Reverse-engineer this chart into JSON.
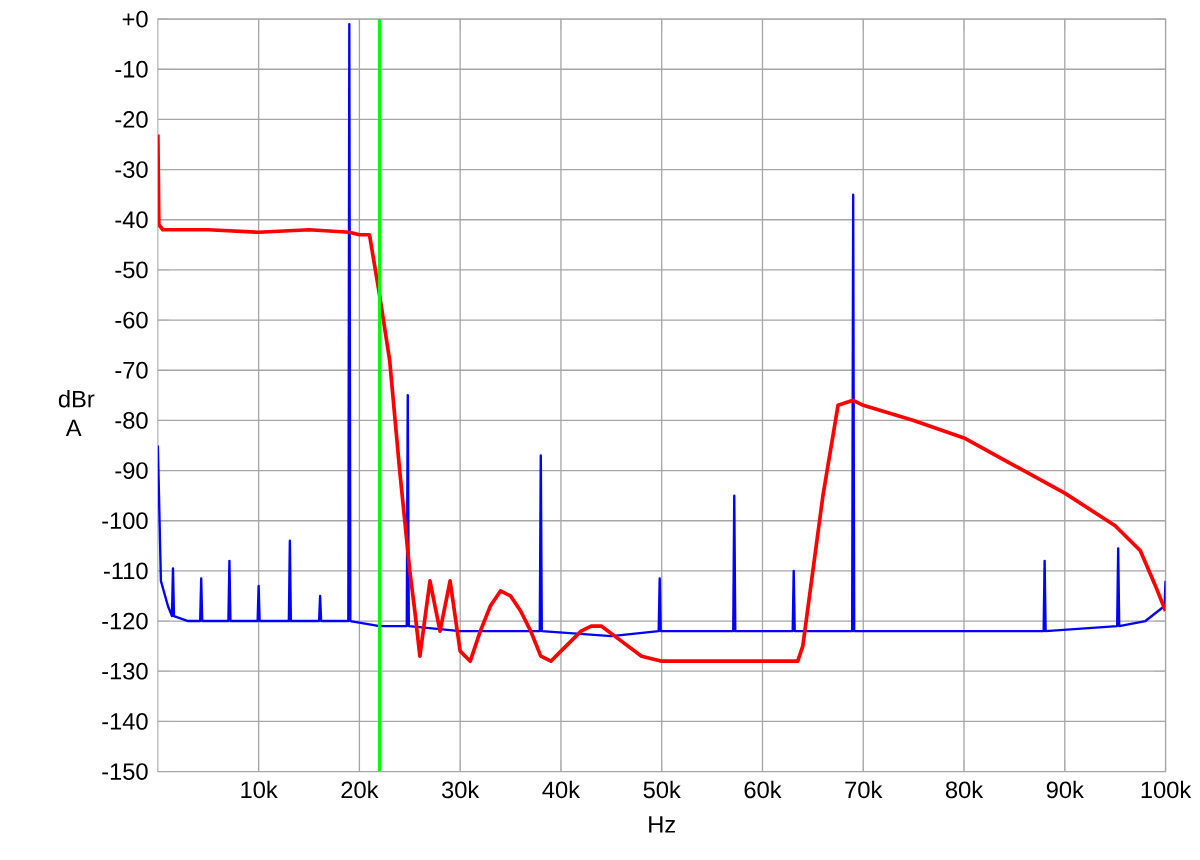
{
  "chart_data": {
    "type": "line",
    "xlabel": "Hz",
    "ylabel": "dBr A",
    "xlim": [
      0,
      100000
    ],
    "ylim": [
      -150,
      0
    ],
    "xticks": [
      {
        "value": 10000,
        "label": "10k"
      },
      {
        "value": 20000,
        "label": "20k"
      },
      {
        "value": 30000,
        "label": "30k"
      },
      {
        "value": 40000,
        "label": "40k"
      },
      {
        "value": 50000,
        "label": "50k"
      },
      {
        "value": 60000,
        "label": "60k"
      },
      {
        "value": 70000,
        "label": "70k"
      },
      {
        "value": 80000,
        "label": "80k"
      },
      {
        "value": 90000,
        "label": "90k"
      },
      {
        "value": 100000,
        "label": "100k"
      }
    ],
    "yticks": [
      {
        "value": 0,
        "label": "+0"
      },
      -10,
      -20,
      -30,
      -40,
      -50,
      -60,
      -70,
      -80,
      -90,
      -100,
      -110,
      -120,
      -130,
      -140,
      -150
    ],
    "grid": true,
    "ref_lines": [
      {
        "axis": "x",
        "value": 22000,
        "color": "#00ff00"
      }
    ],
    "series": [
      {
        "color": "#0000ff",
        "x": [
          0,
          300,
          1000,
          1400,
          1500,
          1600,
          3000,
          4200,
          4300,
          4400,
          7000,
          7100,
          7200,
          9900,
          10000,
          10100,
          13000,
          13100,
          13200,
          16000,
          16100,
          16200,
          18900,
          19000,
          19100,
          22000,
          24700,
          24800,
          24900,
          30000,
          37900,
          38000,
          38100,
          45000,
          49700,
          49800,
          49900,
          57100,
          57200,
          57300,
          63000,
          63100,
          63200,
          68900,
          69000,
          69100,
          80000,
          87900,
          88000,
          88100,
          95200,
          95300,
          95400,
          98000,
          99900,
          100000
        ],
        "values": [
          -85,
          -112,
          -117,
          -119,
          -109.5,
          -119,
          -120,
          -120,
          -111.5,
          -120,
          -120,
          -108,
          -120,
          -120,
          -113,
          -120,
          -120,
          -104,
          -120,
          -120,
          -115,
          -120,
          -120,
          -1,
          -120,
          -121,
          -121,
          -75,
          -121,
          -122,
          -122,
          -87,
          -122,
          -123,
          -122,
          -111.5,
          -122,
          -122,
          -95,
          -122,
          -122,
          -110,
          -122,
          -122,
          -35,
          -122,
          -122,
          -122,
          -108,
          -122,
          -121,
          -105.5,
          -121,
          -120,
          -117,
          -112
        ]
      },
      {
        "color": "#ff0000",
        "x": [
          0,
          100,
          500,
          5000,
          10000,
          15000,
          19000,
          20000,
          21000,
          22000,
          23000,
          24000,
          25000,
          25500,
          26000,
          27000,
          28000,
          29000,
          30000,
          31000,
          32000,
          33000,
          34000,
          35000,
          36000,
          37000,
          38000,
          39000,
          40000,
          42000,
          43000,
          44000,
          46000,
          48000,
          50000,
          55000,
          60000,
          63500,
          64000,
          66000,
          67500,
          69000,
          70000,
          75000,
          80000,
          85000,
          90000,
          95000,
          97500,
          99000,
          100000
        ],
        "values": [
          -23,
          -41,
          -42,
          -42,
          -42.5,
          -42,
          -42.5,
          -43,
          -43,
          -55,
          -68,
          -90,
          -110,
          -118,
          -127,
          -112,
          -122,
          -112,
          -126,
          -128,
          -122,
          -117,
          -114,
          -115,
          -118,
          -122,
          -127,
          -128,
          -126,
          -122,
          -121,
          -121,
          -124,
          -127,
          -128,
          -128,
          -128,
          -128,
          -125,
          -95,
          -77,
          -76,
          -77,
          -80,
          -83.5,
          -89,
          -94.5,
          -101,
          -106,
          -113,
          -118
        ]
      }
    ]
  }
}
